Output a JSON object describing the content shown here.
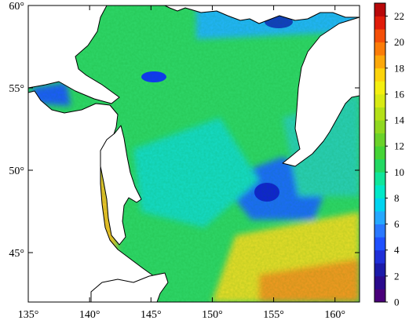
{
  "map": {
    "extent": {
      "lon_min": 135,
      "lon_max": 162,
      "lat_min": 42,
      "lat_max": 60
    },
    "lon_ticks": [
      {
        "value": 135,
        "label": "135°"
      },
      {
        "value": 140,
        "label": "140°"
      },
      {
        "value": 145,
        "label": "145°"
      },
      {
        "value": 150,
        "label": "150°"
      },
      {
        "value": 155,
        "label": "155°"
      },
      {
        "value": 160,
        "label": "160°"
      }
    ],
    "lat_ticks": [
      {
        "value": 60,
        "label": "60°"
      },
      {
        "value": 55,
        "label": "55°"
      },
      {
        "value": 50,
        "label": "50°"
      },
      {
        "value": 45,
        "label": "45°"
      }
    ],
    "colors": {
      "land": "#ffffff",
      "coast": "#000000",
      "no_data": "#ffffff"
    }
  },
  "colorbar": {
    "min": 0,
    "max": 23,
    "step": 1,
    "labels": [
      "22",
      "20",
      "18",
      "16",
      "14",
      "12",
      "10",
      "8",
      "6",
      "4",
      "2",
      "0"
    ],
    "colors": [
      "#4a007a",
      "#2a0a8c",
      "#1b1aa8",
      "#1f2fd8",
      "#1f50ff",
      "#2a78ff",
      "#25a8ff",
      "#00d4f0",
      "#00e8c8",
      "#10e59a",
      "#22d862",
      "#45d436",
      "#6ad22a",
      "#90d820",
      "#b4e018",
      "#d8ea14",
      "#f4ef10",
      "#fcd40c",
      "#fca80a",
      "#fb7c08",
      "#f44f08",
      "#e01c0a",
      "#b8080a"
    ]
  }
}
